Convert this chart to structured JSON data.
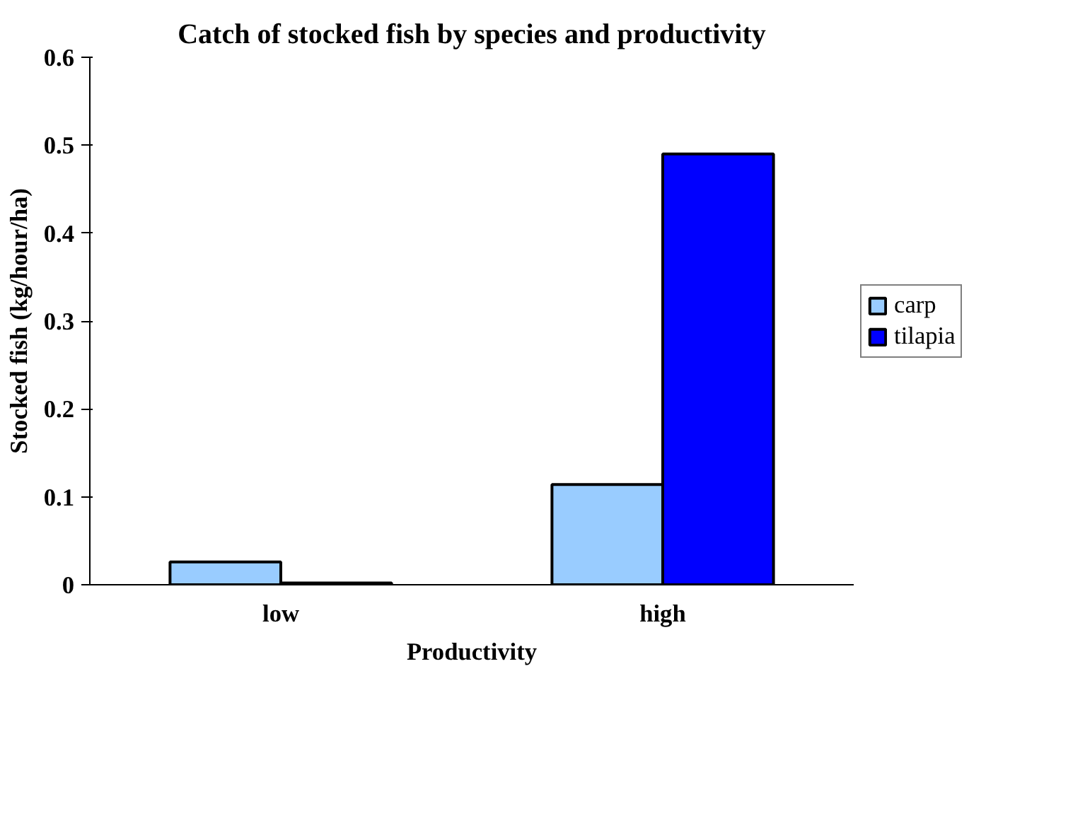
{
  "chart_data": {
    "type": "bar",
    "title": "Catch of stocked fish by species and productivity",
    "xlabel": "Productivity",
    "ylabel": "Stocked fish (kg/hour/ha)",
    "categories": [
      "low",
      "high"
    ],
    "series": [
      {
        "name": "carp",
        "color": "#99ccff",
        "values": [
          0.026,
          0.114
        ]
      },
      {
        "name": "tilapia",
        "color": "#0000ff",
        "values": [
          0.002,
          0.49
        ]
      }
    ],
    "ylim": [
      0,
      0.6
    ],
    "yticks": [
      0,
      0.1,
      0.2,
      0.3,
      0.4,
      0.5,
      0.6
    ],
    "grid": false,
    "legend": "right"
  }
}
